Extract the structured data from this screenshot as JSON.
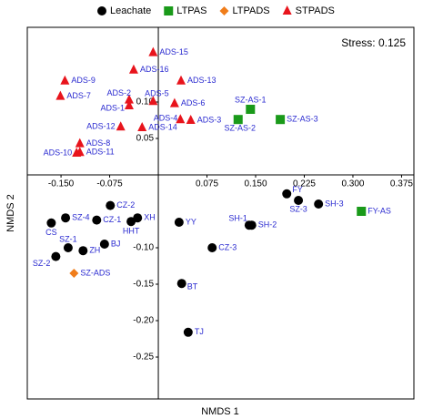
{
  "chart_data": {
    "type": "scatter",
    "annotation": "Stress: 0.125",
    "x_label": "NMDS 1",
    "y_label": "NMDS 2",
    "xlim": [
      -0.202,
      0.394
    ],
    "ylim": [
      -0.3075,
      0.2025
    ],
    "xticks": [
      {
        "value": -0.15,
        "label": "-0.150"
      },
      -0.075,
      0.075,
      {
        "value": 0.15,
        "label": "0.150"
      },
      0.225,
      {
        "value": 0.3,
        "label": "0.300"
      },
      0.375
    ],
    "yticks": [
      {
        "value": 0.1,
        "label": "0.10"
      },
      0.05,
      {
        "value": -0.1,
        "label": "-0.10"
      },
      -0.15,
      {
        "value": -0.2,
        "label": "-0.20"
      },
      -0.25
    ],
    "legend": "top",
    "series": [
      {
        "name": "Leachate",
        "color": "#000000",
        "marker": "circle",
        "labels": [
          "CS",
          "SZ-4",
          "CZ-1",
          "CZ-2",
          "XH",
          "HHT",
          "SZ-1",
          "ZH",
          "BJ",
          "SZ-2",
          "YY",
          "CZ-3",
          "BT",
          "TJ",
          "SH-1",
          "SH-2",
          "FY",
          "SZ-3",
          "SH-3"
        ],
        "x": [
          -0.165,
          -0.143,
          -0.095,
          -0.074,
          -0.032,
          -0.042,
          -0.139,
          -0.116,
          -0.083,
          -0.158,
          0.032,
          0.083,
          0.036,
          0.046,
          0.14,
          0.144,
          0.198,
          0.216,
          0.247
        ],
        "values": [
          -0.066,
          -0.059,
          -0.062,
          -0.042,
          -0.059,
          -0.064,
          -0.1,
          -0.104,
          -0.095,
          -0.112,
          -0.065,
          -0.1,
          -0.149,
          -0.216,
          -0.069,
          -0.069,
          -0.026,
          -0.035,
          -0.04
        ]
      },
      {
        "name": "LTPAS",
        "color": "#1a9a1a",
        "marker": "square",
        "labels": [
          "SZ-AS-1",
          "SZ-AS-2",
          "SZ-AS-3",
          "FY-AS"
        ],
        "x": [
          0.142,
          0.123,
          0.188,
          0.313
        ],
        "values": [
          0.09,
          0.076,
          0.076,
          -0.05
        ]
      },
      {
        "name": "LTPADS",
        "color": "#f07d1a",
        "marker": "diamond",
        "labels": [
          "SZ-ADS"
        ],
        "x": [
          -0.13
        ],
        "values": [
          -0.135
        ]
      },
      {
        "name": "STPADS",
        "color": "#e8141c",
        "marker": "triangle",
        "labels": [
          "ADS-15",
          "ADS-16",
          "ADS-9",
          "ADS-13",
          "ADS-7",
          "ADS-2",
          "ADS-5",
          "ADS-1",
          "ADS-6",
          "ADS-4",
          "ADS-3",
          "ADS-14",
          "ADS-12",
          "ADS-8",
          "ADS-10",
          "ADS-11"
        ],
        "x": [
          -0.008,
          -0.038,
          -0.144,
          0.035,
          -0.151,
          -0.045,
          -0.008,
          -0.045,
          0.025,
          0.034,
          0.05,
          -0.025,
          -0.058,
          -0.121,
          -0.126,
          -0.121
        ],
        "values": [
          0.168,
          0.144,
          0.129,
          0.129,
          0.108,
          0.103,
          0.101,
          0.095,
          0.098,
          0.076,
          0.075,
          0.065,
          0.066,
          0.043,
          0.03,
          0.031
        ]
      }
    ]
  }
}
